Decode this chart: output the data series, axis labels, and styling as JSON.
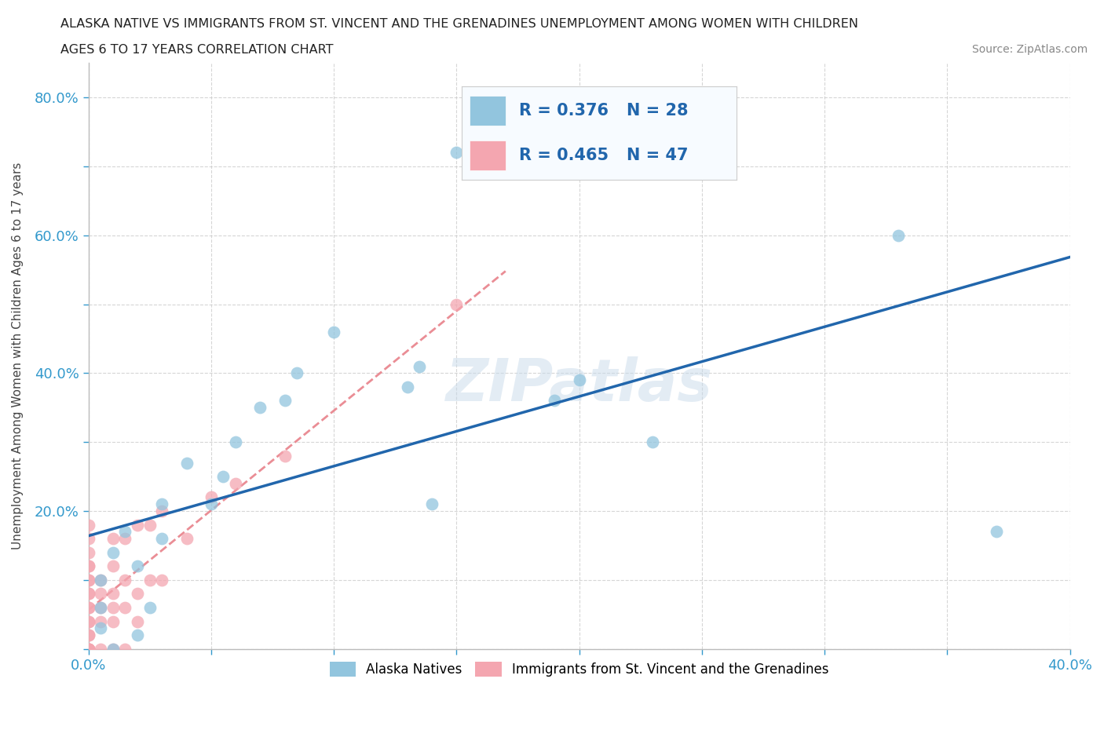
{
  "title_line1": "ALASKA NATIVE VS IMMIGRANTS FROM ST. VINCENT AND THE GRENADINES UNEMPLOYMENT AMONG WOMEN WITH CHILDREN",
  "title_line2": "AGES 6 TO 17 YEARS CORRELATION CHART",
  "source": "Source: ZipAtlas.com",
  "ylabel": "Unemployment Among Women with Children Ages 6 to 17 years",
  "xlim": [
    0.0,
    0.4
  ],
  "ylim": [
    0.0,
    0.85
  ],
  "xticks": [
    0.0,
    0.05,
    0.1,
    0.15,
    0.2,
    0.25,
    0.3,
    0.35,
    0.4
  ],
  "xtick_labels": [
    "0.0%",
    "",
    "",
    "",
    "",
    "",
    "",
    "",
    "40.0%"
  ],
  "yticks": [
    0.0,
    0.1,
    0.2,
    0.3,
    0.4,
    0.5,
    0.6,
    0.7,
    0.8
  ],
  "ytick_labels": [
    "",
    "",
    "20.0%",
    "",
    "40.0%",
    "",
    "60.0%",
    "",
    "80.0%"
  ],
  "alaska_color": "#92c5de",
  "immigrant_color": "#f4a6b0",
  "trendline_alaska_color": "#2166ac",
  "trendline_immigrant_color": "#e8818a",
  "R_alaska": 0.376,
  "N_alaska": 28,
  "R_immigrant": 0.465,
  "N_immigrant": 47,
  "alaska_x": [
    0.005,
    0.005,
    0.005,
    0.01,
    0.01,
    0.015,
    0.02,
    0.02,
    0.025,
    0.03,
    0.03,
    0.04,
    0.05,
    0.055,
    0.06,
    0.07,
    0.08,
    0.085,
    0.1,
    0.13,
    0.135,
    0.14,
    0.15,
    0.19,
    0.2,
    0.23,
    0.33,
    0.37
  ],
  "alaska_y": [
    0.03,
    0.06,
    0.1,
    0.0,
    0.14,
    0.17,
    0.02,
    0.12,
    0.06,
    0.16,
    0.21,
    0.27,
    0.21,
    0.25,
    0.3,
    0.35,
    0.36,
    0.4,
    0.46,
    0.38,
    0.41,
    0.21,
    0.72,
    0.36,
    0.39,
    0.3,
    0.6,
    0.17
  ],
  "immigrant_x": [
    0.0,
    0.0,
    0.0,
    0.0,
    0.0,
    0.0,
    0.0,
    0.0,
    0.0,
    0.0,
    0.0,
    0.0,
    0.0,
    0.0,
    0.0,
    0.0,
    0.0,
    0.0,
    0.0,
    0.0,
    0.005,
    0.005,
    0.005,
    0.005,
    0.005,
    0.01,
    0.01,
    0.01,
    0.01,
    0.01,
    0.01,
    0.015,
    0.015,
    0.015,
    0.015,
    0.02,
    0.02,
    0.02,
    0.025,
    0.025,
    0.03,
    0.03,
    0.04,
    0.05,
    0.06,
    0.08,
    0.15
  ],
  "immigrant_y": [
    0.0,
    0.0,
    0.0,
    0.0,
    0.0,
    0.02,
    0.02,
    0.04,
    0.04,
    0.06,
    0.06,
    0.08,
    0.08,
    0.1,
    0.1,
    0.12,
    0.12,
    0.14,
    0.16,
    0.18,
    0.0,
    0.04,
    0.06,
    0.08,
    0.1,
    0.0,
    0.04,
    0.06,
    0.08,
    0.12,
    0.16,
    0.0,
    0.06,
    0.1,
    0.16,
    0.04,
    0.08,
    0.18,
    0.1,
    0.18,
    0.1,
    0.2,
    0.16,
    0.22,
    0.24,
    0.28,
    0.5
  ],
  "watermark": "ZIPatlas"
}
